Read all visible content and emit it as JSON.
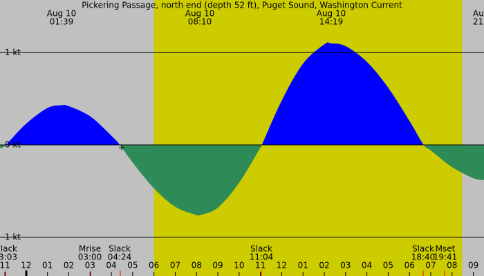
{
  "chart_data": {
    "type": "area",
    "title": "Pickering Passage, north end (depth 52 ft), Puget Sound, Washington Current",
    "x": [
      -1.23,
      -1,
      0,
      1,
      1.65,
      2,
      3,
      4,
      4.4,
      5,
      6,
      7,
      8,
      8.167,
      9,
      10,
      11,
      11.067,
      12,
      13,
      14,
      14.317,
      15,
      16,
      17,
      18,
      18.667,
      19,
      20,
      21,
      21.5
    ],
    "values": [
      -0.03,
      -0.01,
      0.23,
      0.4,
      0.43,
      0.42,
      0.31,
      0.1,
      0,
      -0.19,
      -0.47,
      -0.67,
      -0.76,
      -0.76,
      -0.68,
      -0.41,
      -0.03,
      0,
      0.48,
      0.88,
      1.09,
      1.1,
      1.07,
      0.9,
      0.62,
      0.26,
      0,
      -0.06,
      -0.24,
      -0.36,
      -0.38
    ],
    "flood_color": "#0000ff",
    "ebb_color": "#2e8b57",
    "night_color": "#c0c0c0",
    "day_color": "#cccc00",
    "daylight": [
      6.0,
      20.47
    ],
    "xlim": [
      -1.23,
      21.5
    ],
    "ylim": [
      -1.42,
      1.57
    ],
    "yticks": [
      {
        "value": -1,
        "label": "-1 kt"
      },
      {
        "value": 0,
        "label": "0 kt"
      },
      {
        "value": 1,
        "label": "1 kt"
      }
    ],
    "xticks": [
      {
        "value": -1,
        "label": "11"
      },
      {
        "value": 0,
        "label": "12"
      },
      {
        "value": 1,
        "label": "01"
      },
      {
        "value": 2,
        "label": "02"
      },
      {
        "value": 3,
        "label": "03"
      },
      {
        "value": 4,
        "label": "04"
      },
      {
        "value": 5,
        "label": "05"
      },
      {
        "value": 6,
        "label": "06"
      },
      {
        "value": 7,
        "label": "07"
      },
      {
        "value": 8,
        "label": "08"
      },
      {
        "value": 9,
        "label": "09"
      },
      10,
      11,
      12,
      {
        "value": 13,
        "label": "01"
      },
      {
        "value": 14,
        "label": "02"
      },
      {
        "value": 15,
        "label": "03"
      },
      {
        "value": 16,
        "label": "04"
      },
      {
        "value": 17,
        "label": "05"
      },
      {
        "value": 18,
        "label": "06"
      },
      {
        "value": 19,
        "label": "07"
      },
      {
        "value": 20,
        "label": "08"
      },
      {
        "value": 21,
        "label": "09"
      }
    ],
    "top_labels": [
      {
        "date": "Aug 10",
        "time": "01:39"
      },
      {
        "date": "Aug 10",
        "time": "08:10"
      },
      {
        "date": "Aug 10",
        "time": "14:19"
      },
      {
        "date": "Au",
        "time": "21"
      }
    ],
    "events": [
      {
        "name": "lack",
        "time": "3:03"
      },
      {
        "name": "Mrise",
        "time": "03:00"
      },
      {
        "name": "Slack",
        "time": "04:24"
      },
      {
        "name": "Slack",
        "time": "11:04"
      },
      {
        "name": "Slack",
        "time": "18:40"
      },
      {
        "name": "Mset",
        "time": "19:41"
      }
    ]
  }
}
